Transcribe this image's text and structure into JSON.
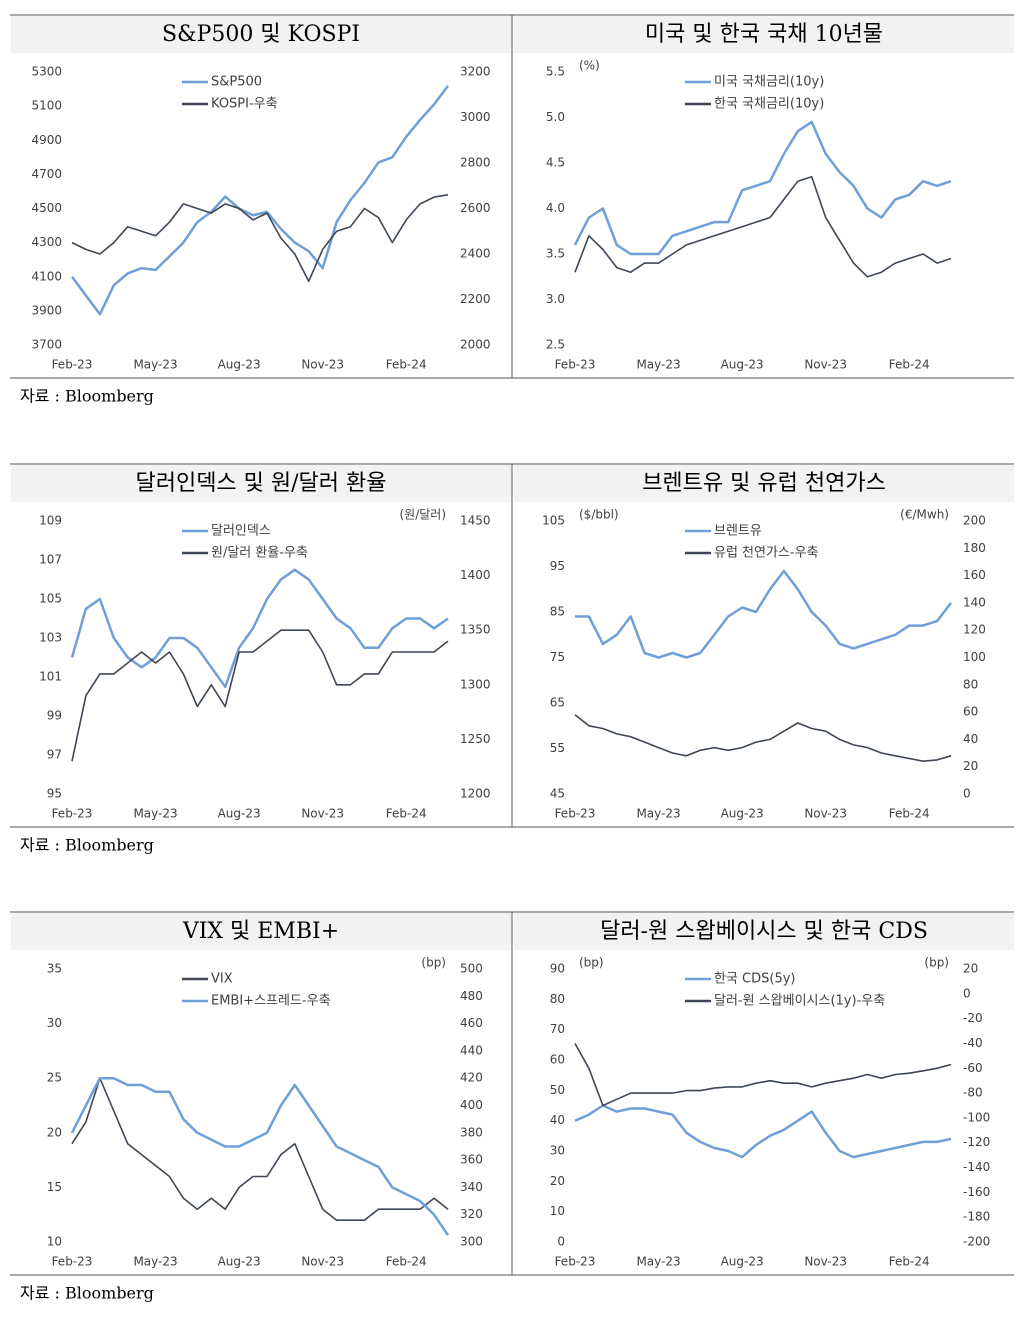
{
  "chart_data": [
    {
      "type": "line",
      "title": "S&P500 및 KOSPI",
      "categories": [
        "Feb-23",
        null,
        null,
        null,
        null,
        null,
        "May-23",
        null,
        null,
        null,
        null,
        null,
        "Aug-23",
        null,
        null,
        null,
        null,
        null,
        "Nov-23",
        null,
        null,
        null,
        null,
        null,
        "Feb-24",
        null,
        null,
        null
      ],
      "series": [
        {
          "name": "S&P500",
          "color": "#6f9fd8",
          "values": [
            4100,
            3990,
            3880,
            4050,
            4120,
            4150,
            4140,
            4220,
            4300,
            4420,
            4480,
            4570,
            4500,
            4460,
            4480,
            4380,
            4300,
            4250,
            4150,
            4420,
            4550,
            4650,
            4770,
            4800,
            4920,
            5020,
            5110,
            5220
          ]
        },
        {
          "name": "KOSPI-우축",
          "color": "#3f4756",
          "axis": "y2",
          "values": [
            2450,
            2420,
            2400,
            2450,
            2520,
            2500,
            2480,
            2540,
            2620,
            2600,
            2580,
            2620,
            2600,
            2550,
            2580,
            2470,
            2400,
            2280,
            2420,
            2500,
            2520,
            2600,
            2560,
            2450,
            2550,
            2620,
            2650,
            2660
          ]
        }
      ],
      "ylim": [
        3700,
        5300
      ],
      "yticks": [
        3700,
        3900,
        4100,
        4300,
        4500,
        4700,
        4900,
        5100,
        5300
      ],
      "y2lim": [
        2000,
        3200
      ],
      "y2ticks": [
        2000,
        2200,
        2400,
        2600,
        2800,
        3000,
        3200
      ]
    },
    {
      "type": "line",
      "title": "미국 및 한국 국채 10년물",
      "ylabel": "(%)",
      "categories": [
        "Feb-23",
        null,
        null,
        null,
        null,
        null,
        "May-23",
        null,
        null,
        null,
        null,
        null,
        "Aug-23",
        null,
        null,
        null,
        null,
        null,
        "Nov-23",
        null,
        null,
        null,
        null,
        null,
        "Feb-24",
        null,
        null,
        null
      ],
      "series": [
        {
          "name": "미국 국채금리(10y)",
          "color": "#6f9fd8",
          "values": [
            3.6,
            3.9,
            4.0,
            3.6,
            3.5,
            3.5,
            3.5,
            3.7,
            3.75,
            3.8,
            3.85,
            3.85,
            4.2,
            4.25,
            4.3,
            4.6,
            4.85,
            4.95,
            4.6,
            4.4,
            4.25,
            4.0,
            3.9,
            4.1,
            4.15,
            4.3,
            4.25,
            4.3
          ]
        },
        {
          "name": "한국 국채금리(10y)",
          "color": "#3f4756",
          "values": [
            3.3,
            3.7,
            3.55,
            3.35,
            3.3,
            3.4,
            3.4,
            3.5,
            3.6,
            3.65,
            3.7,
            3.75,
            3.8,
            3.85,
            3.9,
            4.1,
            4.3,
            4.35,
            3.9,
            3.65,
            3.4,
            3.25,
            3.3,
            3.4,
            3.45,
            3.5,
            3.4,
            3.45
          ]
        }
      ],
      "ylim": [
        2.5,
        5.5
      ],
      "yticks": [
        2.5,
        {
          "value": 3,
          "label": "3.0"
        },
        3.5,
        {
          "value": 4,
          "label": "4.0"
        },
        4.5,
        {
          "value": 5,
          "label": "5.0"
        },
        5.5
      ]
    },
    {
      "type": "line",
      "title": "달러인덱스 및 원/달러 환율",
      "y2label": "(원/달러)",
      "categories": [
        "Feb-23",
        null,
        null,
        null,
        null,
        null,
        "May-23",
        null,
        null,
        null,
        null,
        null,
        "Aug-23",
        null,
        null,
        null,
        null,
        null,
        "Nov-23",
        null,
        null,
        null,
        null,
        null,
        "Feb-24",
        null,
        null,
        null
      ],
      "series": [
        {
          "name": "달러인덱스",
          "color": "#6f9fd8",
          "values": [
            102,
            104.5,
            105,
            103,
            102,
            101.5,
            102,
            103,
            103,
            102.5,
            101.5,
            100.5,
            102.5,
            103.5,
            105,
            106,
            106.5,
            106,
            105,
            104,
            103.5,
            102.5,
            102.5,
            103.5,
            104,
            104,
            103.5,
            104
          ]
        },
        {
          "name": "원/달러 환율-우축",
          "color": "#3f4756",
          "axis": "y2",
          "values": [
            1230,
            1290,
            1310,
            1310,
            1320,
            1330,
            1320,
            1330,
            1310,
            1280,
            1300,
            1280,
            1330,
            1330,
            1340,
            1350,
            1350,
            1350,
            1330,
            1300,
            1300,
            1310,
            1310,
            1330,
            1330,
            1330,
            1330,
            1340
          ]
        }
      ],
      "ylim": [
        95,
        109
      ],
      "yticks": [
        95,
        97,
        99,
        101,
        103,
        105,
        107,
        109
      ],
      "y2lim": [
        1200,
        1450
      ],
      "y2ticks": [
        1200,
        1250,
        1300,
        1350,
        1400,
        1450
      ]
    },
    {
      "type": "line",
      "title": "브렌트유 및 유럽 천연가스",
      "ylabel": "($/bbl)",
      "y2label": "(€/Mwh)",
      "categories": [
        "Feb-23",
        null,
        null,
        null,
        null,
        null,
        "May-23",
        null,
        null,
        null,
        null,
        null,
        "Aug-23",
        null,
        null,
        null,
        null,
        null,
        "Nov-23",
        null,
        null,
        null,
        null,
        null,
        "Feb-24",
        null,
        null,
        null
      ],
      "series": [
        {
          "name": "브렌트유",
          "color": "#6f9fd8",
          "values": [
            84,
            84,
            78,
            80,
            84,
            76,
            75,
            76,
            75,
            76,
            80,
            84,
            86,
            85,
            90,
            94,
            90,
            85,
            82,
            78,
            77,
            78,
            79,
            80,
            82,
            82,
            83,
            87
          ]
        },
        {
          "name": "유럽 천연가스-우축",
          "color": "#3f4756",
          "axis": "y2",
          "values": [
            58,
            50,
            48,
            44,
            42,
            38,
            34,
            30,
            28,
            32,
            34,
            32,
            34,
            38,
            40,
            46,
            52,
            48,
            46,
            40,
            36,
            34,
            30,
            28,
            26,
            24,
            25,
            28
          ]
        }
      ],
      "ylim": [
        45,
        105
      ],
      "yticks": [
        45,
        55,
        65,
        75,
        85,
        95,
        105
      ],
      "y2lim": [
        0,
        200
      ],
      "y2ticks": [
        0,
        20,
        40,
        60,
        80,
        100,
        120,
        140,
        160,
        180,
        200
      ]
    },
    {
      "type": "line",
      "title": "VIX 및 EMBI+",
      "y2label": "(bp)",
      "categories": [
        "Feb-23",
        null,
        null,
        null,
        null,
        null,
        "May-23",
        null,
        null,
        null,
        null,
        null,
        "Aug-23",
        null,
        null,
        null,
        null,
        null,
        "Nov-23",
        null,
        null,
        null,
        null,
        null,
        "Feb-24",
        null,
        null,
        null
      ],
      "series": [
        {
          "name": "VIX",
          "color": "#3f4756",
          "values": [
            19,
            21,
            25,
            22,
            19,
            18,
            17,
            16,
            14,
            13,
            14,
            13,
            15,
            16,
            16,
            18,
            19,
            16,
            13,
            12,
            12,
            12,
            13,
            13,
            13,
            13,
            14,
            13
          ]
        },
        {
          "name": "EMBI+스프레드-우축",
          "color": "#6f9fd8",
          "axis": "y2",
          "values": [
            380,
            400,
            420,
            420,
            415,
            415,
            410,
            410,
            390,
            380,
            375,
            370,
            370,
            375,
            380,
            400,
            415,
            400,
            385,
            370,
            365,
            360,
            355,
            340,
            335,
            330,
            320,
            305
          ]
        }
      ],
      "ylim": [
        10,
        35
      ],
      "yticks": [
        10,
        15,
        20,
        25,
        30,
        35
      ],
      "y2lim": [
        300,
        500
      ],
      "y2ticks": [
        300,
        320,
        340,
        360,
        380,
        400,
        420,
        440,
        460,
        480,
        500
      ]
    },
    {
      "type": "line",
      "title": "달러-원 스왑베이시스 및 한국 CDS",
      "ylabel": "(bp)",
      "y2label": "(bp)",
      "categories": [
        "Feb-23",
        null,
        null,
        null,
        null,
        null,
        "May-23",
        null,
        null,
        null,
        null,
        null,
        "Aug-23",
        null,
        null,
        null,
        null,
        null,
        "Nov-23",
        null,
        null,
        null,
        null,
        null,
        "Feb-24",
        null,
        null,
        null
      ],
      "series": [
        {
          "name": "한국 CDS(5y)",
          "color": "#6f9fd8",
          "values": [
            40,
            42,
            45,
            43,
            44,
            44,
            43,
            42,
            36,
            33,
            31,
            30,
            28,
            32,
            35,
            37,
            40,
            43,
            36,
            30,
            28,
            29,
            30,
            31,
            32,
            33,
            33,
            34
          ]
        },
        {
          "name": "달러-원 스왑베이시스(1y)-우축",
          "color": "#3f4756",
          "axis": "y2",
          "values": [
            -40,
            -60,
            -90,
            -85,
            -80,
            -80,
            -80,
            -80,
            -78,
            -78,
            -76,
            -75,
            -75,
            -72,
            -70,
            -72,
            -72,
            -75,
            -72,
            -70,
            -68,
            -65,
            -68,
            -65,
            -64,
            -62,
            -60,
            -57
          ]
        }
      ],
      "ylim": [
        0,
        90
      ],
      "yticks": [
        0,
        10,
        20,
        30,
        40,
        50,
        60,
        70,
        80,
        90
      ],
      "y2lim": [
        -200,
        20
      ],
      "y2ticks": [
        -200,
        -180,
        -160,
        -140,
        -120,
        -100,
        -80,
        -60,
        -40,
        -20,
        0,
        20
      ]
    }
  ],
  "sources": [
    "자료 : Bloomberg",
    "자료 : Bloomberg",
    "자료 : Bloomberg"
  ]
}
